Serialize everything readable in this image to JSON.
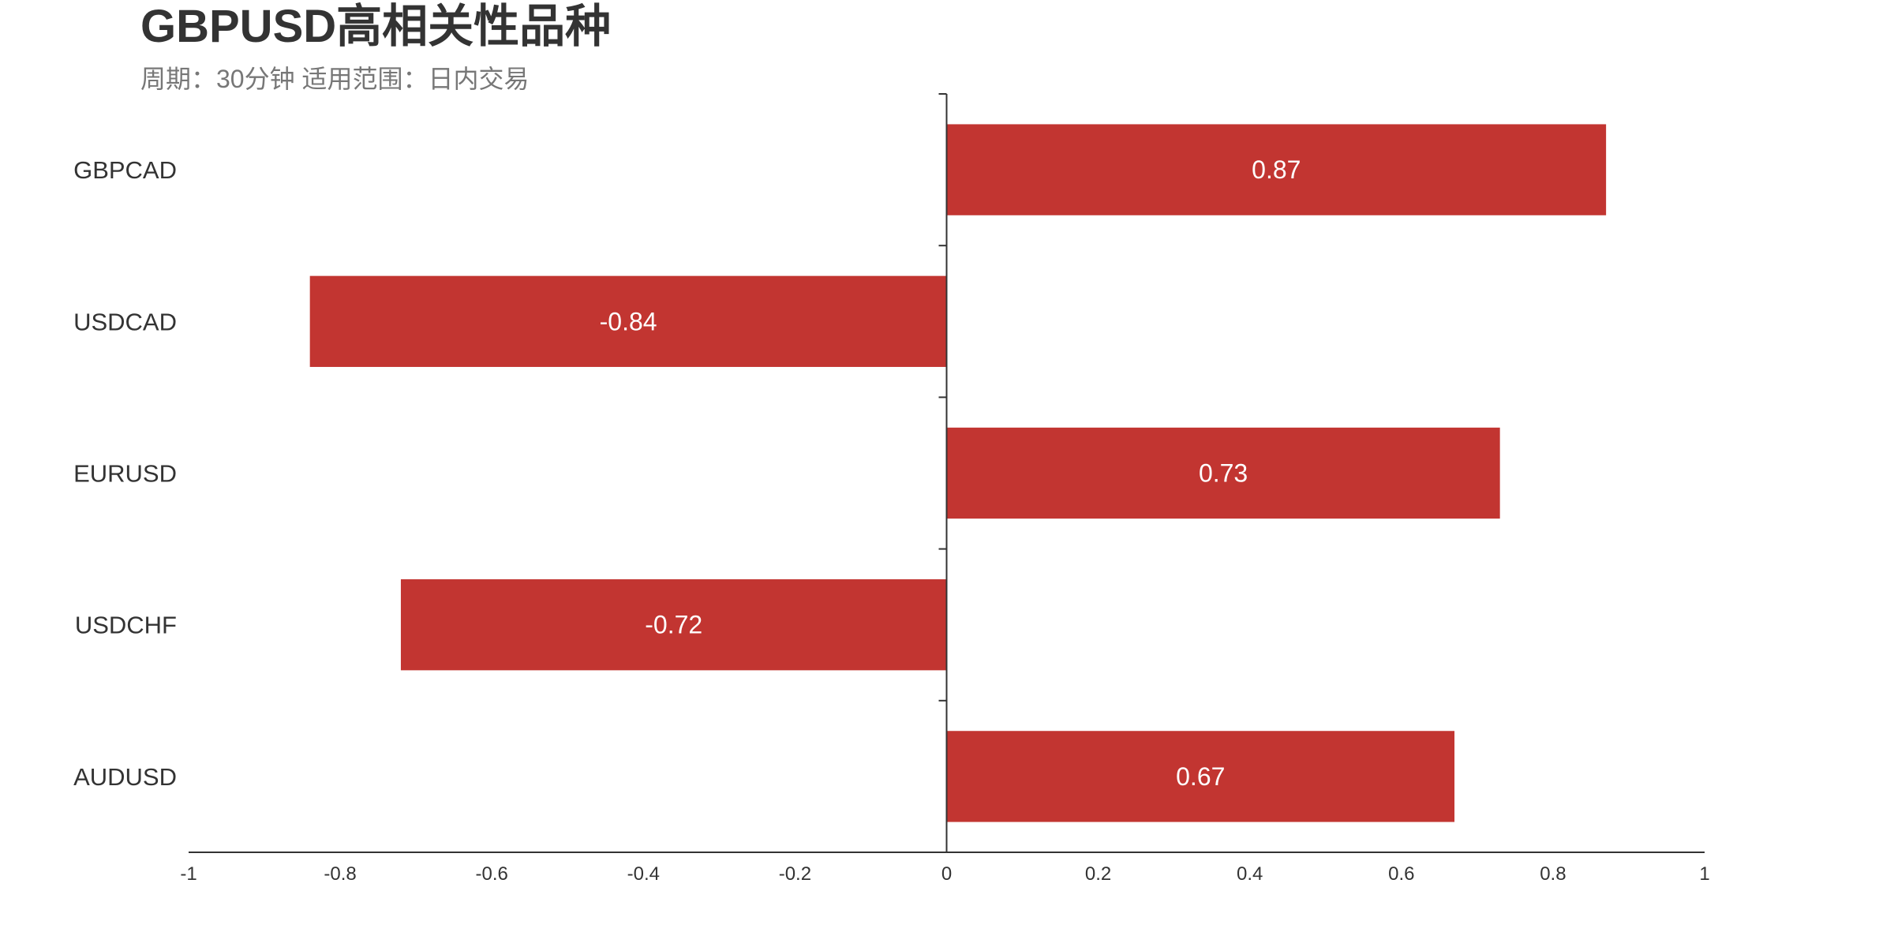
{
  "chart_data": {
    "type": "bar",
    "orientation": "horizontal",
    "title": "GBPUSD高相关性品种",
    "subtitle": "周期：30分钟 适用范围：日内交易",
    "categories": [
      "GBPCAD",
      "USDCAD",
      "EURUSD",
      "USDCHF",
      "AUDUSD"
    ],
    "values": [
      0.87,
      -0.84,
      0.73,
      -0.72,
      0.67
    ],
    "data_labels": [
      "0.87",
      "-0.84",
      "0.73",
      "-0.72",
      "0.67"
    ],
    "xlim": [
      -1,
      1
    ],
    "x_ticks": [
      "-1",
      "-0.8",
      "-0.6",
      "-0.4",
      "-0.2",
      "0",
      "0.2",
      "0.4",
      "0.6",
      "0.8",
      "1"
    ],
    "xlabel": "",
    "ylabel": "",
    "grid": false,
    "bar_color": "#c23531"
  }
}
